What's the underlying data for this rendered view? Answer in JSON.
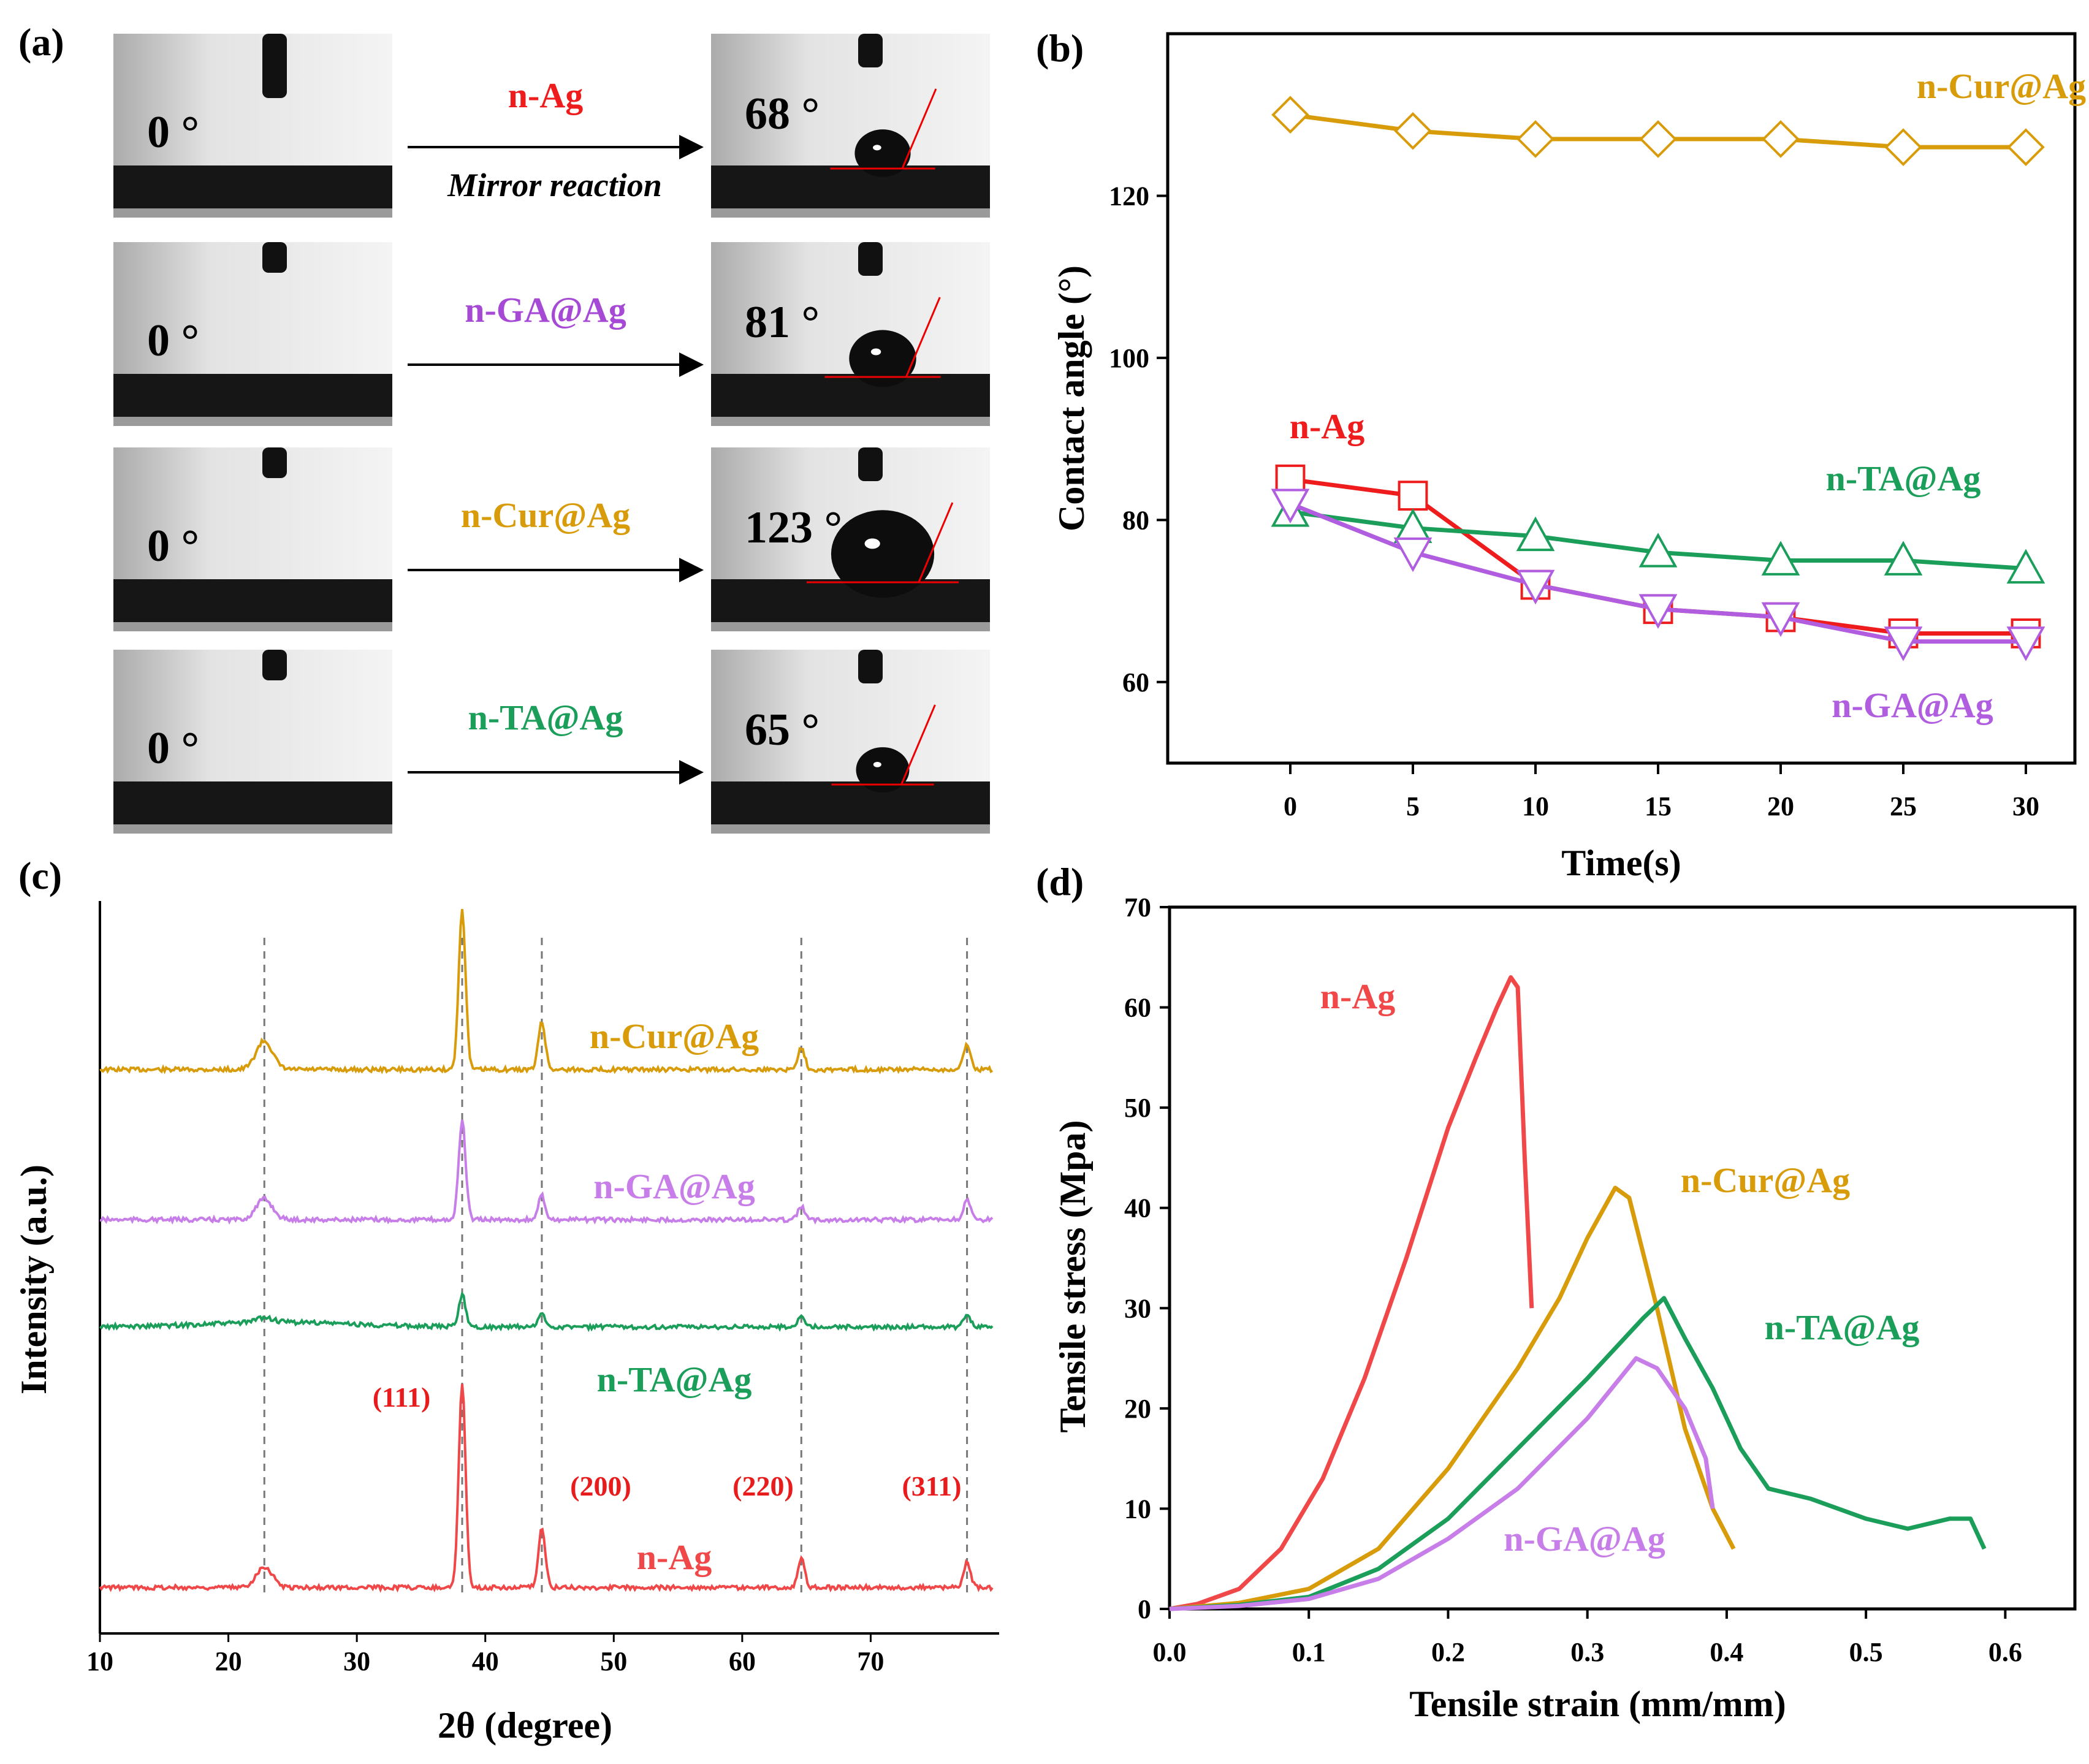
{
  "panel_a": {
    "label": "(a)",
    "rows": [
      {
        "before": "0 °",
        "after": "68 °",
        "sample": "n-Ag",
        "note": "Mirror reaction",
        "color": "#ee1c1c"
      },
      {
        "before": "0 °",
        "after": "81 °",
        "sample": "n-GA@Ag",
        "note": "",
        "color": "#a64ad6"
      },
      {
        "before": "0 °",
        "after": "123 °",
        "sample": "n-Cur@Ag",
        "note": "",
        "color": "#d89b0a"
      },
      {
        "before": "0 °",
        "after": "65 °",
        "sample": "n-TA@Ag",
        "note": "",
        "color": "#1a9e5a"
      }
    ]
  },
  "chart_data": [
    {
      "panel": "(b)",
      "type": "line",
      "xlabel": "Time(s)",
      "ylabel": "Contact angle (°)",
      "xlim": [
        -5,
        32
      ],
      "ylim": [
        50,
        140
      ],
      "xticks": [
        "0",
        "5",
        "10",
        "15",
        "20",
        "25",
        "30"
      ],
      "yticks": [
        "60",
        "80",
        "100",
        "120"
      ],
      "x": [
        0,
        5,
        10,
        15,
        20,
        25,
        30
      ],
      "series": [
        {
          "name": "n-Cur@Ag",
          "color": "#d89b0a",
          "marker": "diamond",
          "values": [
            130,
            128,
            127,
            127,
            127,
            126,
            126
          ]
        },
        {
          "name": "n-Ag",
          "color": "#ee1c1c",
          "marker": "square",
          "values": [
            85,
            83,
            72,
            69,
            68,
            66,
            66
          ]
        },
        {
          "name": "n-TA@Ag",
          "color": "#1a9e5a",
          "marker": "triangle-up",
          "values": [
            81,
            79,
            78,
            76,
            75,
            75,
            74
          ]
        },
        {
          "name": "n-GA@Ag",
          "color": "#b05de0",
          "marker": "triangle-down",
          "values": [
            82,
            76,
            72,
            69,
            68,
            65,
            65
          ]
        }
      ]
    },
    {
      "panel": "(c)",
      "type": "line",
      "xlabel": "2θ (degree)",
      "ylabel": "Intensity (a.u.)",
      "xlim": [
        10,
        80
      ],
      "xticks": [
        "10",
        "20",
        "30",
        "40",
        "50",
        "60",
        "70"
      ],
      "peaks": [
        22.8,
        38.2,
        44.4,
        64.6,
        77.5
      ],
      "reflections": [
        "(111)",
        "(200)",
        "(220)",
        "(311)"
      ],
      "series": [
        {
          "name": "n-Cur@Ag",
          "color": "#d89b0a",
          "peak_heights": [
            0.18,
            1.0,
            0.3,
            0.14,
            0.16
          ]
        },
        {
          "name": "n-GA@Ag",
          "color": "#c77ee8",
          "peak_heights": [
            0.13,
            0.62,
            0.15,
            0.08,
            0.12
          ]
        },
        {
          "name": "n-TA@Ag",
          "color": "#1a9e5a",
          "peak_heights": [
            0.03,
            0.2,
            0.08,
            0.07,
            0.07
          ]
        },
        {
          "name": "n-Ag",
          "color": "#f04848",
          "peak_heights": [
            0.13,
            1.27,
            0.37,
            0.18,
            0.16
          ]
        }
      ]
    },
    {
      "panel": "(d)",
      "type": "line",
      "xlabel": "Tensile strain (mm/mm)",
      "ylabel": "Tensile stress (Mpa)",
      "xlim": [
        0,
        0.65
      ],
      "ylim": [
        0,
        70
      ],
      "xticks": [
        "0.0",
        "0.1",
        "0.2",
        "0.3",
        "0.4",
        "0.5",
        "0.6"
      ],
      "yticks": [
        "0",
        "10",
        "20",
        "30",
        "40",
        "50",
        "60",
        "70"
      ],
      "series": [
        {
          "name": "n-Ag",
          "color": "#f04848",
          "points": [
            [
              0,
              0
            ],
            [
              0.02,
              0.5
            ],
            [
              0.05,
              2
            ],
            [
              0.08,
              6
            ],
            [
              0.11,
              13
            ],
            [
              0.14,
              23
            ],
            [
              0.17,
              35
            ],
            [
              0.2,
              48
            ],
            [
              0.22,
              55
            ],
            [
              0.235,
              60
            ],
            [
              0.245,
              63
            ],
            [
              0.25,
              62
            ],
            [
              0.255,
              45
            ],
            [
              0.26,
              30
            ]
          ]
        },
        {
          "name": "n-Cur@Ag",
          "color": "#d89b0a",
          "points": [
            [
              0,
              0
            ],
            [
              0.05,
              0.6
            ],
            [
              0.1,
              2
            ],
            [
              0.15,
              6
            ],
            [
              0.2,
              14
            ],
            [
              0.25,
              24
            ],
            [
              0.28,
              31
            ],
            [
              0.3,
              37
            ],
            [
              0.32,
              42
            ],
            [
              0.33,
              41
            ],
            [
              0.35,
              30
            ],
            [
              0.37,
              18
            ],
            [
              0.39,
              10
            ],
            [
              0.405,
              6
            ]
          ]
        },
        {
          "name": "n-TA@Ag",
          "color": "#1a9e5a",
          "points": [
            [
              0,
              0
            ],
            [
              0.05,
              0.4
            ],
            [
              0.1,
              1.2
            ],
            [
              0.15,
              4
            ],
            [
              0.2,
              9
            ],
            [
              0.25,
              16
            ],
            [
              0.3,
              23
            ],
            [
              0.34,
              29
            ],
            [
              0.355,
              31
            ],
            [
              0.37,
              27
            ],
            [
              0.39,
              22
            ],
            [
              0.41,
              16
            ],
            [
              0.43,
              12
            ],
            [
              0.46,
              11
            ],
            [
              0.5,
              9
            ],
            [
              0.53,
              8
            ],
            [
              0.56,
              9
            ],
            [
              0.575,
              9
            ],
            [
              0.585,
              6
            ]
          ]
        },
        {
          "name": "n-GA@Ag",
          "color": "#c77ee8",
          "points": [
            [
              0,
              0
            ],
            [
              0.05,
              0.3
            ],
            [
              0.1,
              1
            ],
            [
              0.15,
              3
            ],
            [
              0.2,
              7
            ],
            [
              0.25,
              12
            ],
            [
              0.3,
              19
            ],
            [
              0.335,
              25
            ],
            [
              0.35,
              24
            ],
            [
              0.37,
              20
            ],
            [
              0.385,
              15
            ],
            [
              0.39,
              10
            ]
          ]
        }
      ]
    }
  ]
}
